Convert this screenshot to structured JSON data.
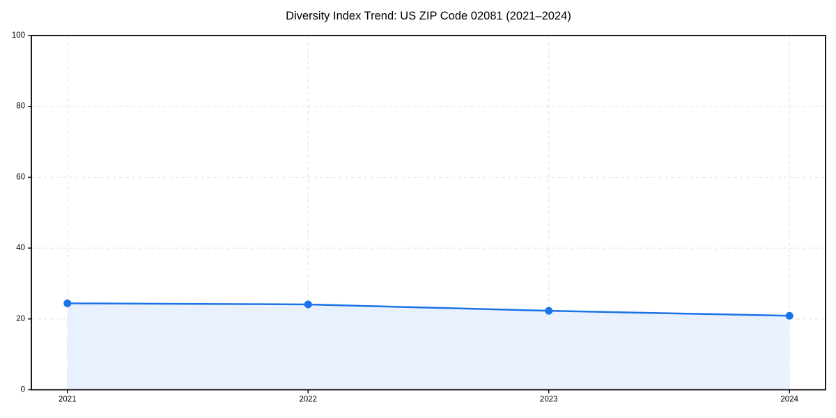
{
  "chart_data": {
    "type": "area",
    "title": "Diversity Index Trend: US ZIP Code 02081 (2021–2024)",
    "categories": [
      "2021",
      "2022",
      "2023",
      "2024"
    ],
    "x": [
      2021,
      2022,
      2023,
      2024
    ],
    "series": [
      {
        "name": "Diversity Index",
        "values": [
          24.4,
          24.1,
          22.3,
          20.9
        ]
      }
    ],
    "xlabel": "",
    "ylabel": "",
    "xlim": [
      2020.85,
      2024.15
    ],
    "ylim": [
      0,
      100
    ],
    "yticks": [
      0,
      20,
      40,
      60,
      80,
      100
    ],
    "ytick_labels": [
      "0",
      "20",
      "40",
      "60",
      "80",
      "100"
    ],
    "grid": true,
    "grid_style": "dashed",
    "legend_position": "none",
    "colors": {
      "line": "#1a73e8",
      "marker": "#1a73e8",
      "fill": "#e8f1fd",
      "grid": "#e0e0e0",
      "axis": "#000000",
      "text": "#000000"
    }
  }
}
